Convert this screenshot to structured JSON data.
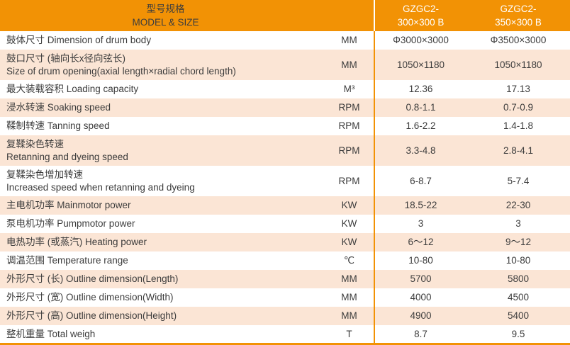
{
  "table": {
    "header": {
      "title_cn": "型号规格",
      "title_en": "MODEL & SIZE",
      "columns": [
        {
          "prefix": "GZGC2-",
          "size": "300×300 B"
        },
        {
          "prefix": "GZGC2-",
          "size": "350×300 B"
        }
      ]
    },
    "rows": [
      {
        "label": "鼓体尺寸 Dimension of drum body",
        "unit": "MM",
        "values": [
          "Φ3000×3000",
          "Φ3500×3000"
        ]
      },
      {
        "label": "鼓口尺寸 (轴向长x径向弦长)\nSize of drum opening(axial length×radial chord length)",
        "unit": "MM",
        "values": [
          "1050×1180",
          "1050×1180"
        ]
      },
      {
        "label": "最大装载容积 Loading capacity",
        "unit": "M³",
        "values": [
          "12.36",
          "17.13"
        ]
      },
      {
        "label": "浸水转速 Soaking speed",
        "unit": "RPM",
        "values": [
          "0.8-1.1",
          "0.7-0.9"
        ]
      },
      {
        "label": "鞣制转速 Tanning speed",
        "unit": "RPM",
        "values": [
          "1.6-2.2",
          "1.4-1.8"
        ]
      },
      {
        "label": "复鞣染色转速\nRetanning and dyeing speed",
        "unit": "RPM",
        "values": [
          "3.3-4.8",
          "2.8-4.1"
        ]
      },
      {
        "label": "复鞣染色增加转速\nIncreased speed when retanning and dyeing",
        "unit": "RPM",
        "values": [
          "6-8.7",
          "5-7.4"
        ]
      },
      {
        "label": "主电机功率 Mainmotor power",
        "unit": "KW",
        "values": [
          "18.5-22",
          "22-30"
        ]
      },
      {
        "label": "泵电机功率 Pumpmotor power",
        "unit": "KW",
        "values": [
          "3",
          "3"
        ]
      },
      {
        "label": "电热功率 (或蒸汽) Heating power",
        "unit": "KW",
        "values": [
          "6～12",
          "9～12"
        ]
      },
      {
        "label": "调温范围 Temperature range",
        "unit": "℃",
        "values": [
          "10-80",
          "10-80"
        ]
      },
      {
        "label": "外形尺寸 (长) Outline dimension(Length)",
        "unit": "MM",
        "values": [
          "5700",
          "5800"
        ]
      },
      {
        "label": "外形尺寸 (宽) Outline dimension(Width)",
        "unit": "MM",
        "values": [
          "4000",
          "4500"
        ]
      },
      {
        "label": "外形尺寸 (高) Outline dimension(Height)",
        "unit": "MM",
        "values": [
          "4900",
          "5400"
        ]
      },
      {
        "label": "整机重量 Total weigh",
        "unit": "T",
        "values": [
          "8.7",
          "9.5"
        ]
      }
    ],
    "colors": {
      "header_bg": "#F29205",
      "alt_row_bg": "#FBE5D5",
      "divider_orange": "#F29205",
      "header_divider_white": "#FFFFFF",
      "header_model_text": "#FFFFFF",
      "body_text": "#3C3C3C",
      "bottom_border": "#F29205"
    }
  }
}
